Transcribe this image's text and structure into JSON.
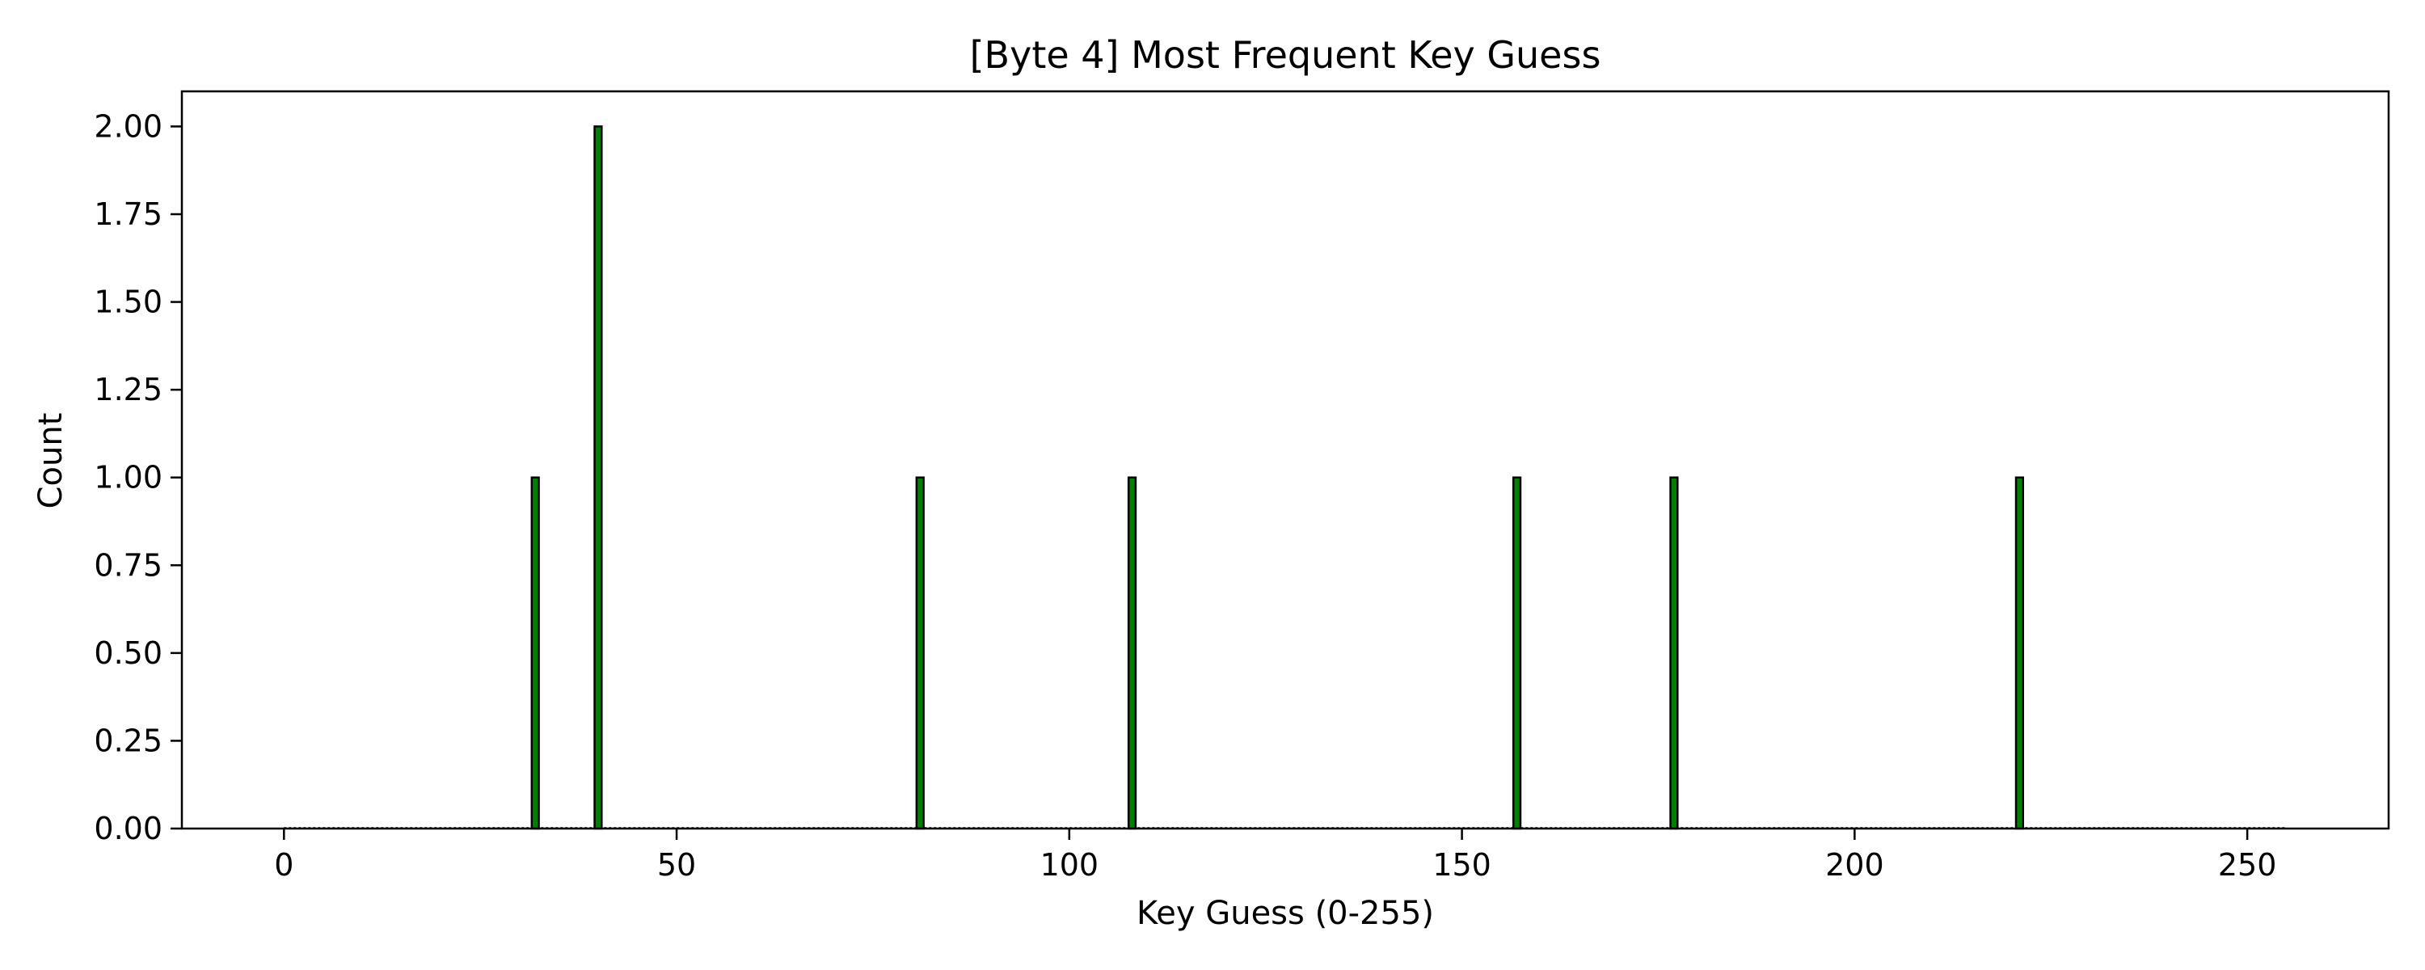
{
  "chart_data": {
    "type": "bar",
    "title": "[Byte 4] Most Frequent Key Guess",
    "xlabel": "Key Guess (0-255)",
    "ylabel": "Count",
    "xlim": [
      -13,
      268
    ],
    "ylim": [
      0,
      2.1
    ],
    "xticks": [
      0,
      50,
      100,
      150,
      200,
      250
    ],
    "xtick_labels": [
      "0",
      "50",
      "100",
      "150",
      "200",
      "250"
    ],
    "yticks": [
      0,
      0.25,
      0.5,
      0.75,
      1.0,
      1.25,
      1.5,
      1.75,
      2.0
    ],
    "ytick_labels": [
      "0.00",
      "0.25",
      "0.50",
      "0.75",
      "1.00",
      "1.25",
      "1.50",
      "1.75",
      "2.00"
    ],
    "x_range": [
      0,
      255
    ],
    "bars": [
      {
        "x": 32,
        "value": 1
      },
      {
        "x": 40,
        "value": 2
      },
      {
        "x": 81,
        "value": 1
      },
      {
        "x": 108,
        "value": 1
      },
      {
        "x": 157,
        "value": 1
      },
      {
        "x": 177,
        "value": 1
      },
      {
        "x": 221,
        "value": 1
      }
    ],
    "bar_color": "#008000",
    "edge_color": "#000000",
    "grid": false,
    "legend": "none"
  }
}
